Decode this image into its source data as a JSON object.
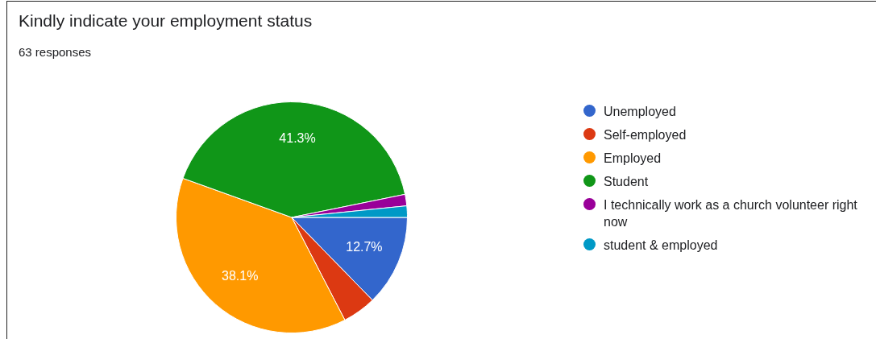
{
  "chart_data": {
    "type": "pie",
    "title": "Kindly indicate your employment status",
    "subtitle": "63 responses",
    "categories": [
      "Unemployed",
      "Self-employed",
      "Employed",
      "Student",
      "I technically work as a church volunteer right now",
      "student & employed"
    ],
    "values": [
      12.7,
      4.7,
      38.1,
      41.3,
      1.6,
      1.6
    ],
    "colors": [
      "#3366cc",
      "#dc3912",
      "#ff9900",
      "#109618",
      "#990099",
      "#0099c6"
    ],
    "value_labels": [
      "12.7%",
      null,
      "38.1%",
      "41.3%",
      null,
      null
    ],
    "legend": "right"
  }
}
